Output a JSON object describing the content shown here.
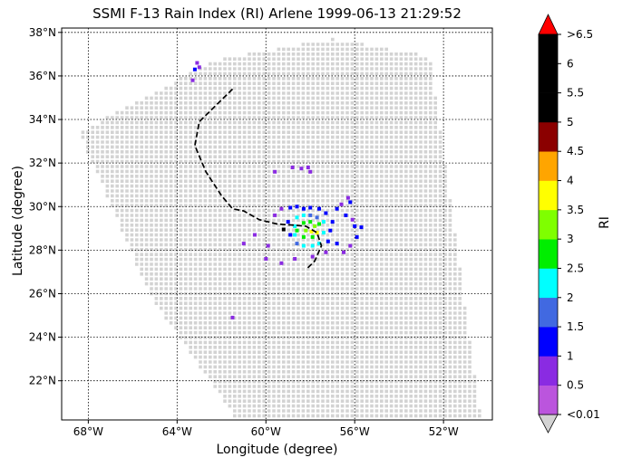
{
  "title": "SSMI F-13 Rain Index (RI) Arlene 1999-06-13 21:29:52",
  "xlabel": "Longitude (degree)",
  "ylabel": "Latitude (degree)",
  "colorbar_label": "RI",
  "chart_data": {
    "type": "map",
    "x_ticks": [
      "68°W",
      "64°W",
      "60°W",
      "56°W",
      "52°W"
    ],
    "x_tick_values": [
      -68,
      -64,
      -60,
      -56,
      -52
    ],
    "y_ticks": [
      "38°N",
      "36°N",
      "34°N",
      "32°N",
      "30°N",
      "28°N",
      "26°N",
      "24°N",
      "22°N"
    ],
    "y_tick_values": [
      38,
      36,
      34,
      32,
      30,
      28,
      26,
      24,
      22
    ],
    "xlim": [
      -69.2,
      -49.8
    ],
    "ylim": [
      20.2,
      38.2
    ],
    "grid": true,
    "colorbar_ticks": [
      "<0.01",
      "0.5",
      "1",
      "1.5",
      "2",
      "2.5",
      "3",
      "3.5",
      "4",
      "4.5",
      "5",
      "5.5",
      "6",
      ">6.5"
    ],
    "colorbar_colors": [
      "#bb55dd",
      "#8a2be2",
      "#0000ff",
      "#4169e1",
      "#00ffff",
      "#00ee00",
      "#7fff00",
      "#ffff00",
      "#ffa500",
      "#8b0000",
      "#000000",
      "#000000",
      "#000000"
    ],
    "over_color": "#ff0000",
    "under_color": "#d3d3d3",
    "swath_color": "#d3d3d3",
    "swath_corners": [
      [
        -68.4,
        33.4
      ],
      [
        -62.3,
        36.7
      ],
      [
        -57,
        37.7
      ],
      [
        -52.6,
        36.9
      ],
      [
        -50.3,
        20.2
      ],
      [
        -61.3,
        20.2
      ],
      [
        -65.2,
        25.9
      ]
    ],
    "track": [
      [
        -61.5,
        35.4
      ],
      [
        -62.2,
        34.7
      ],
      [
        -63,
        33.9
      ],
      [
        -63.2,
        32.8
      ],
      [
        -62.7,
        31.6
      ],
      [
        -62,
        30.5
      ],
      [
        -61.5,
        29.9
      ],
      [
        -61,
        29.8
      ],
      [
        -60.3,
        29.4
      ],
      [
        -59.5,
        29.2
      ],
      [
        -58.8,
        29.15
      ],
      [
        -58.2,
        29.1
      ],
      [
        -57.7,
        28.8
      ],
      [
        -57.5,
        28.2
      ],
      [
        -57.8,
        27.5
      ],
      [
        -58.2,
        27.1
      ]
    ],
    "rain_points": [
      [
        -63.1,
        36.6,
        0.5
      ],
      [
        -63,
        36.4,
        0.5
      ],
      [
        -63.2,
        36.3,
        1
      ],
      [
        -63.3,
        35.8,
        0.5
      ],
      [
        -59.6,
        31.6,
        0.5
      ],
      [
        -58.8,
        31.8,
        0.5
      ],
      [
        -58.4,
        31.75,
        0.5
      ],
      [
        -58,
        31.6,
        0.5
      ],
      [
        -58.1,
        31.8,
        0.5
      ],
      [
        -56.3,
        30.4,
        0.5
      ],
      [
        -56.2,
        30.2,
        1
      ],
      [
        -56.6,
        30.1,
        0.5
      ],
      [
        -56.8,
        29.9,
        1
      ],
      [
        -56.4,
        29.6,
        1
      ],
      [
        -56.1,
        29.4,
        0.5
      ],
      [
        -56,
        29.1,
        1
      ],
      [
        -55.7,
        29.05,
        1
      ],
      [
        -55.9,
        28.6,
        1
      ],
      [
        -56.2,
        28.2,
        0.5
      ],
      [
        -56.5,
        27.9,
        0.5
      ],
      [
        -56.8,
        28.3,
        1
      ],
      [
        -59.9,
        28.2,
        0.5
      ],
      [
        -60,
        27.6,
        0.5
      ],
      [
        -59.3,
        27.4,
        0.5
      ],
      [
        -58.7,
        27.6,
        0.5
      ],
      [
        -57.9,
        27.7,
        0.5
      ],
      [
        -57.3,
        27.9,
        0.5
      ],
      [
        -60.5,
        28.7,
        0.5
      ],
      [
        -61,
        28.3,
        0.5
      ],
      [
        -61.5,
        24.9,
        0.5
      ],
      [
        -59.3,
        29.9,
        0.5
      ],
      [
        -59.6,
        29.6,
        0.5
      ],
      [
        -58.9,
        29.95,
        1
      ],
      [
        -58.6,
        30,
        1
      ],
      [
        -58.3,
        29.9,
        1
      ],
      [
        -58,
        29.95,
        1
      ],
      [
        -57.6,
        29.9,
        1
      ],
      [
        -57.3,
        29.7,
        1
      ],
      [
        -59,
        29.3,
        1
      ],
      [
        -57,
        29.3,
        1
      ],
      [
        -57.1,
        28.9,
        1
      ],
      [
        -57.2,
        28.4,
        1
      ],
      [
        -58.9,
        28.7,
        1
      ],
      [
        -58.6,
        29.5,
        2
      ],
      [
        -58.3,
        29.6,
        2
      ],
      [
        -58,
        29.6,
        1.5
      ],
      [
        -57.7,
        29.5,
        1.5
      ],
      [
        -57.4,
        29.3,
        2
      ],
      [
        -57.4,
        28.8,
        2
      ],
      [
        -57.6,
        28.3,
        2
      ],
      [
        -57.9,
        28.2,
        2
      ],
      [
        -58.3,
        28.2,
        2
      ],
      [
        -58.6,
        28.3,
        1.5
      ],
      [
        -58.7,
        28.7,
        2
      ],
      [
        -58.7,
        29.1,
        2
      ],
      [
        -58.3,
        29.25,
        2.5
      ],
      [
        -58,
        29.3,
        2.5
      ],
      [
        -57.8,
        29.1,
        3
      ],
      [
        -58.2,
        28.9,
        3
      ],
      [
        -57.9,
        28.6,
        2.5
      ],
      [
        -58.3,
        28.6,
        2.5
      ],
      [
        -58.6,
        28.9,
        2.5
      ],
      [
        -57.7,
        28.8,
        3.5
      ],
      [
        -57.95,
        28.85,
        3.5
      ],
      [
        -57.6,
        29.2,
        2.5
      ],
      [
        -59.2,
        28.95,
        6
      ]
    ]
  }
}
